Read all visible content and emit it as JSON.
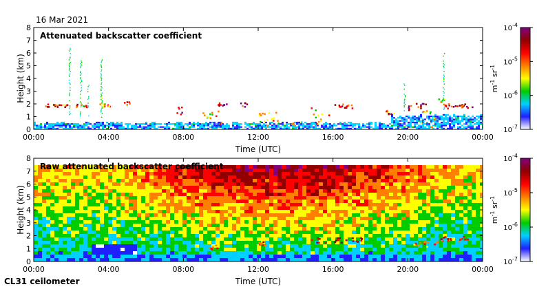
{
  "header": {
    "date": "16 Mar 2021"
  },
  "footer": {
    "instrument": "CL31 ceilometer"
  },
  "colorbar": {
    "ticks": [
      {
        "base": "10",
        "exp": "-4"
      },
      {
        "base": "10",
        "exp": "-5"
      },
      {
        "base": "10",
        "exp": "-6"
      },
      {
        "base": "10",
        "exp": "-7"
      }
    ],
    "unit": {
      "m": "m",
      "m_exp": "-1",
      "sr": "sr",
      "sr_exp": "-1"
    },
    "colors": [
      "#ffffff",
      "#2020ff",
      "#00d0ff",
      "#00cc00",
      "#ffff00",
      "#ff8000",
      "#ff0000",
      "#900000",
      "#800080"
    ]
  },
  "chart_data": [
    {
      "type": "heatmap",
      "title": "Attenuated backscatter coefficient",
      "xlabel": "Time (UTC)",
      "ylabel": "Height (km)",
      "x_ticks": [
        "00:00",
        "04:00",
        "08:00",
        "12:00",
        "16:00",
        "20:00",
        "00:00"
      ],
      "y_ticks": [
        "0",
        "1",
        "2",
        "3",
        "4",
        "5",
        "6",
        "7",
        "8"
      ],
      "xlim_hours": [
        0,
        24
      ],
      "ylim_km": [
        0,
        8
      ],
      "colorbar_range": [
        1e-07,
        0.0001
      ],
      "scale": "log"
    },
    {
      "type": "heatmap",
      "title": "Raw attenuated backscatter coefficient",
      "xlabel": "Time (UTC)",
      "ylabel": "Height (km)",
      "x_ticks": [
        "00:00",
        "04:00",
        "08:00",
        "12:00",
        "16:00",
        "20:00",
        "00:00"
      ],
      "y_ticks": [
        "0",
        "1",
        "2",
        "3",
        "4",
        "5",
        "6",
        "7",
        "8"
      ],
      "xlim_hours": [
        0,
        24
      ],
      "ylim_km": [
        0,
        8
      ],
      "colorbar_range": [
        1e-07,
        0.0001
      ],
      "scale": "log"
    }
  ]
}
